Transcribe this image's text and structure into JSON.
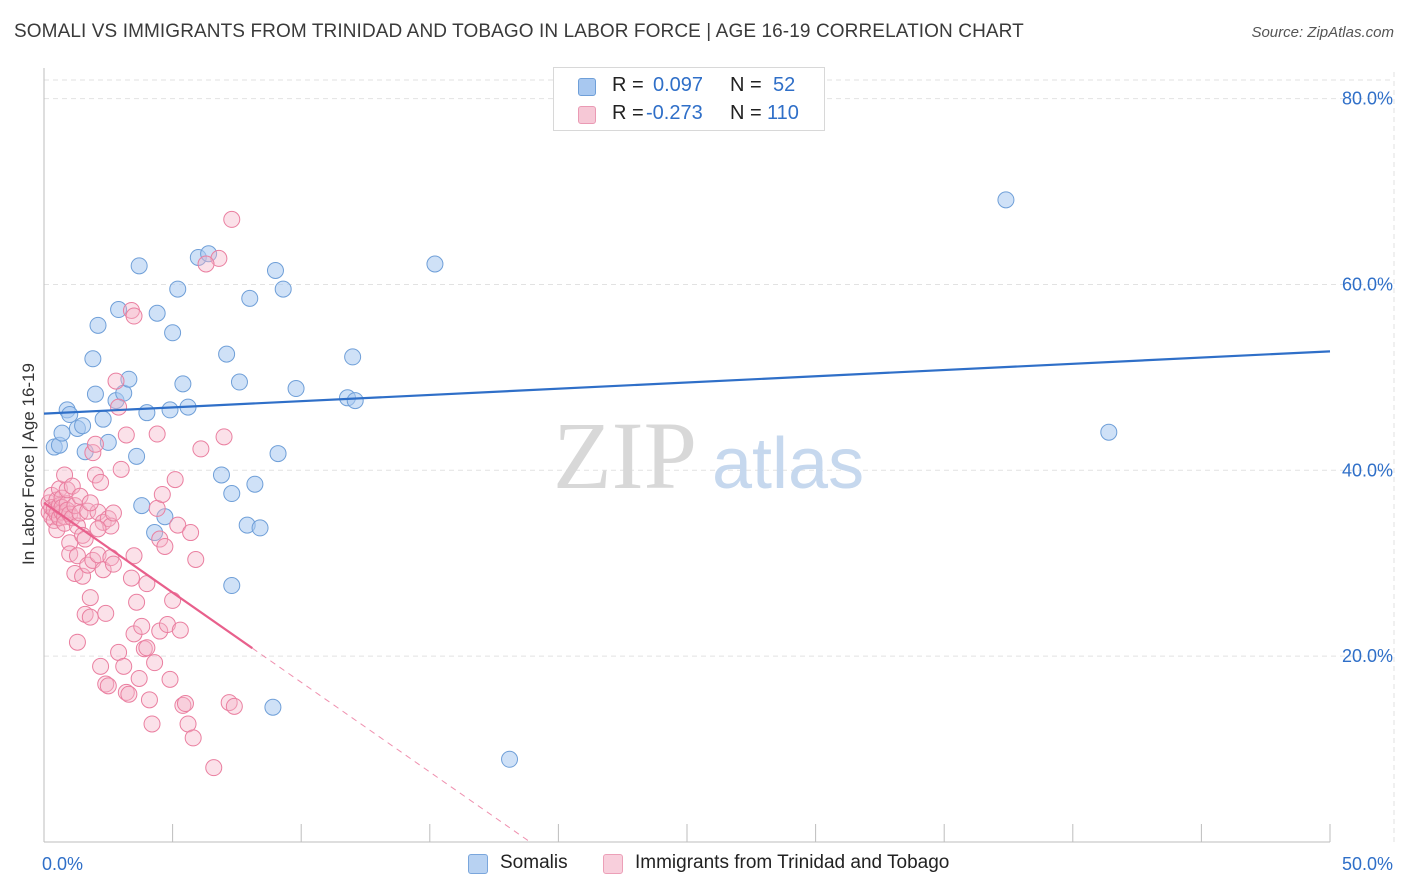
{
  "title": "SOMALI VS IMMIGRANTS FROM TRINIDAD AND TOBAGO IN LABOR FORCE | AGE 16-19 CORRELATION CHART",
  "source": "Source: ZipAtlas.com",
  "watermark": {
    "zip": "ZIP",
    "atlas": "atlas"
  },
  "colors": {
    "blue_fill": "#a8c8f0",
    "blue_stroke": "#6f9fd8",
    "blue_line": "#2f6fc8",
    "pink_fill": "#f6b4c8",
    "pink_stroke": "#ea7fa0",
    "pink_line": "#e8608c",
    "axis_value_text": "#2f6fc8",
    "grid": "#e2e2e2"
  },
  "stats_legend": [
    {
      "r_label": "R =",
      "r_value": "0.097",
      "n_label": "N =",
      "n_value": "52",
      "series": "Somalis"
    },
    {
      "r_label": "R =",
      "r_value": "-0.273",
      "n_label": "N =",
      "n_value": "110",
      "series": "Immigrants from Trinidad and Tobago"
    }
  ],
  "legend": [
    "Somalis",
    "Immigrants from Trinidad and Tobago"
  ],
  "chart_data": {
    "type": "scatter",
    "title": "SOMALI VS IMMIGRANTS FROM TRINIDAD AND TOBAGO IN LABOR FORCE | AGE 16-19 CORRELATION CHART",
    "xlabel": "",
    "ylabel": "In Labor Force | Age 16-19",
    "xlim": [
      0,
      50
    ],
    "ylim": [
      0,
      82
    ],
    "x_tick_labels": [
      {
        "value": 0,
        "label": "0.0%"
      },
      {
        "value": 50,
        "label": "50.0%"
      }
    ],
    "y_tick_labels": [
      {
        "value": 20,
        "label": "20.0%"
      },
      {
        "value": 40,
        "label": "40.0%"
      },
      {
        "value": 60,
        "label": "60.0%"
      },
      {
        "value": 80,
        "label": "80.0%"
      }
    ],
    "x_minor_ticks": [
      5,
      10,
      15,
      20,
      25,
      30,
      35,
      40,
      45,
      50
    ],
    "grid": true,
    "legend_position": "bottom",
    "series": [
      {
        "name": "Somalis",
        "color": "#a8c8f0",
        "trend": {
          "x": [
            0,
            50
          ],
          "y": [
            46.1,
            52.8
          ],
          "dashed_from": null
        },
        "points": [
          [
            0.4,
            42.5
          ],
          [
            0.6,
            42.7
          ],
          [
            0.7,
            44.0
          ],
          [
            0.9,
            46.5
          ],
          [
            1.0,
            46.0
          ],
          [
            1.3,
            44.5
          ],
          [
            1.5,
            44.8
          ],
          [
            1.6,
            42.0
          ],
          [
            1.9,
            52.0
          ],
          [
            2.0,
            48.2
          ],
          [
            2.1,
            55.6
          ],
          [
            2.3,
            45.5
          ],
          [
            2.5,
            43.0
          ],
          [
            2.8,
            47.5
          ],
          [
            2.9,
            57.3
          ],
          [
            3.1,
            48.3
          ],
          [
            3.3,
            49.8
          ],
          [
            3.6,
            41.5
          ],
          [
            3.7,
            62.0
          ],
          [
            3.8,
            36.2
          ],
          [
            4.0,
            46.2
          ],
          [
            4.3,
            33.3
          ],
          [
            4.4,
            56.9
          ],
          [
            4.7,
            35.0
          ],
          [
            4.9,
            46.5
          ],
          [
            5.0,
            54.8
          ],
          [
            5.2,
            59.5
          ],
          [
            5.4,
            49.3
          ],
          [
            5.6,
            46.8
          ],
          [
            6.0,
            62.9
          ],
          [
            6.4,
            63.3
          ],
          [
            6.9,
            39.5
          ],
          [
            7.1,
            52.5
          ],
          [
            7.3,
            37.5
          ],
          [
            7.6,
            49.5
          ],
          [
            7.9,
            34.1
          ],
          [
            8.0,
            58.5
          ],
          [
            8.2,
            38.5
          ],
          [
            8.4,
            33.8
          ],
          [
            9.0,
            61.5
          ],
          [
            9.1,
            41.8
          ],
          [
            9.3,
            59.5
          ],
          [
            9.8,
            48.8
          ],
          [
            11.8,
            47.8
          ],
          [
            12.0,
            52.2
          ],
          [
            12.1,
            47.5
          ],
          [
            15.2,
            62.2
          ],
          [
            7.3,
            27.6
          ],
          [
            18.1,
            8.9
          ],
          [
            37.4,
            69.1
          ],
          [
            41.4,
            44.1
          ],
          [
            8.9,
            14.5
          ]
        ]
      },
      {
        "name": "Immigrants from Trinidad and Tobago",
        "color": "#f6b4c8",
        "trend": {
          "x": [
            0,
            18.9
          ],
          "y": [
            36.5,
            0
          ],
          "dashed_from": 8.1
        },
        "points": [
          [
            0.2,
            35.5
          ],
          [
            0.2,
            36.5
          ],
          [
            0.3,
            37.3
          ],
          [
            0.3,
            35.0
          ],
          [
            0.3,
            36.0
          ],
          [
            0.4,
            34.6
          ],
          [
            0.4,
            35.8
          ],
          [
            0.5,
            33.6
          ],
          [
            0.5,
            36.8
          ],
          [
            0.5,
            35.3
          ],
          [
            0.6,
            38.0
          ],
          [
            0.6,
            36.2
          ],
          [
            0.6,
            34.9
          ],
          [
            0.7,
            35.5
          ],
          [
            0.7,
            37.0
          ],
          [
            0.7,
            36.0
          ],
          [
            0.8,
            39.5
          ],
          [
            0.8,
            35.0
          ],
          [
            0.8,
            34.3
          ],
          [
            0.9,
            36.4
          ],
          [
            0.9,
            37.9
          ],
          [
            0.9,
            35.7
          ],
          [
            1.0,
            35.3
          ],
          [
            1.0,
            32.2
          ],
          [
            1.0,
            31.0
          ],
          [
            1.1,
            34.9
          ],
          [
            1.1,
            38.3
          ],
          [
            1.2,
            36.2
          ],
          [
            1.2,
            28.9
          ],
          [
            1.3,
            30.8
          ],
          [
            1.3,
            34.0
          ],
          [
            1.3,
            21.5
          ],
          [
            1.4,
            37.2
          ],
          [
            1.4,
            35.4
          ],
          [
            1.5,
            33.0
          ],
          [
            1.5,
            28.6
          ],
          [
            1.6,
            24.5
          ],
          [
            1.6,
            32.6
          ],
          [
            1.7,
            35.6
          ],
          [
            1.7,
            29.8
          ],
          [
            1.8,
            26.3
          ],
          [
            1.8,
            24.2
          ],
          [
            1.9,
            30.3
          ],
          [
            1.9,
            41.9
          ],
          [
            2.0,
            39.5
          ],
          [
            2.0,
            42.8
          ],
          [
            2.1,
            35.5
          ],
          [
            2.1,
            30.9
          ],
          [
            2.2,
            38.7
          ],
          [
            2.2,
            18.9
          ],
          [
            2.3,
            34.4
          ],
          [
            2.3,
            29.3
          ],
          [
            2.4,
            24.6
          ],
          [
            2.4,
            17.0
          ],
          [
            2.5,
            16.8
          ],
          [
            2.5,
            34.8
          ],
          [
            2.6,
            34.0
          ],
          [
            2.6,
            30.6
          ],
          [
            2.7,
            35.4
          ],
          [
            2.7,
            29.9
          ],
          [
            2.8,
            49.6
          ],
          [
            2.9,
            46.8
          ],
          [
            2.9,
            20.4
          ],
          [
            3.0,
            40.1
          ],
          [
            3.1,
            18.9
          ],
          [
            3.2,
            43.8
          ],
          [
            3.2,
            16.1
          ],
          [
            3.3,
            15.9
          ],
          [
            3.4,
            28.4
          ],
          [
            3.5,
            30.8
          ],
          [
            3.5,
            22.4
          ],
          [
            3.6,
            25.8
          ],
          [
            3.7,
            17.6
          ],
          [
            3.8,
            23.2
          ],
          [
            3.9,
            20.8
          ],
          [
            4.0,
            20.9
          ],
          [
            4.0,
            27.8
          ],
          [
            4.1,
            15.3
          ],
          [
            4.2,
            12.7
          ],
          [
            4.3,
            19.3
          ],
          [
            4.4,
            35.9
          ],
          [
            4.5,
            32.6
          ],
          [
            4.5,
            22.7
          ],
          [
            4.6,
            37.4
          ],
          [
            4.7,
            31.8
          ],
          [
            4.8,
            23.4
          ],
          [
            4.9,
            17.5
          ],
          [
            5.0,
            26.0
          ],
          [
            5.1,
            39.0
          ],
          [
            5.2,
            34.1
          ],
          [
            5.3,
            22.8
          ],
          [
            5.4,
            14.7
          ],
          [
            5.5,
            14.9
          ],
          [
            5.6,
            12.7
          ],
          [
            5.7,
            33.3
          ],
          [
            5.8,
            11.2
          ],
          [
            5.9,
            30.4
          ],
          [
            6.1,
            42.3
          ],
          [
            6.6,
            8.0
          ],
          [
            7.0,
            43.6
          ],
          [
            7.2,
            15.0
          ],
          [
            7.4,
            14.6
          ],
          [
            6.8,
            62.8
          ],
          [
            7.3,
            67.0
          ],
          [
            3.4,
            57.2
          ],
          [
            3.5,
            56.6
          ],
          [
            6.3,
            62.2
          ],
          [
            4.4,
            43.9
          ],
          [
            1.8,
            36.5
          ],
          [
            2.1,
            33.7
          ]
        ]
      }
    ]
  }
}
